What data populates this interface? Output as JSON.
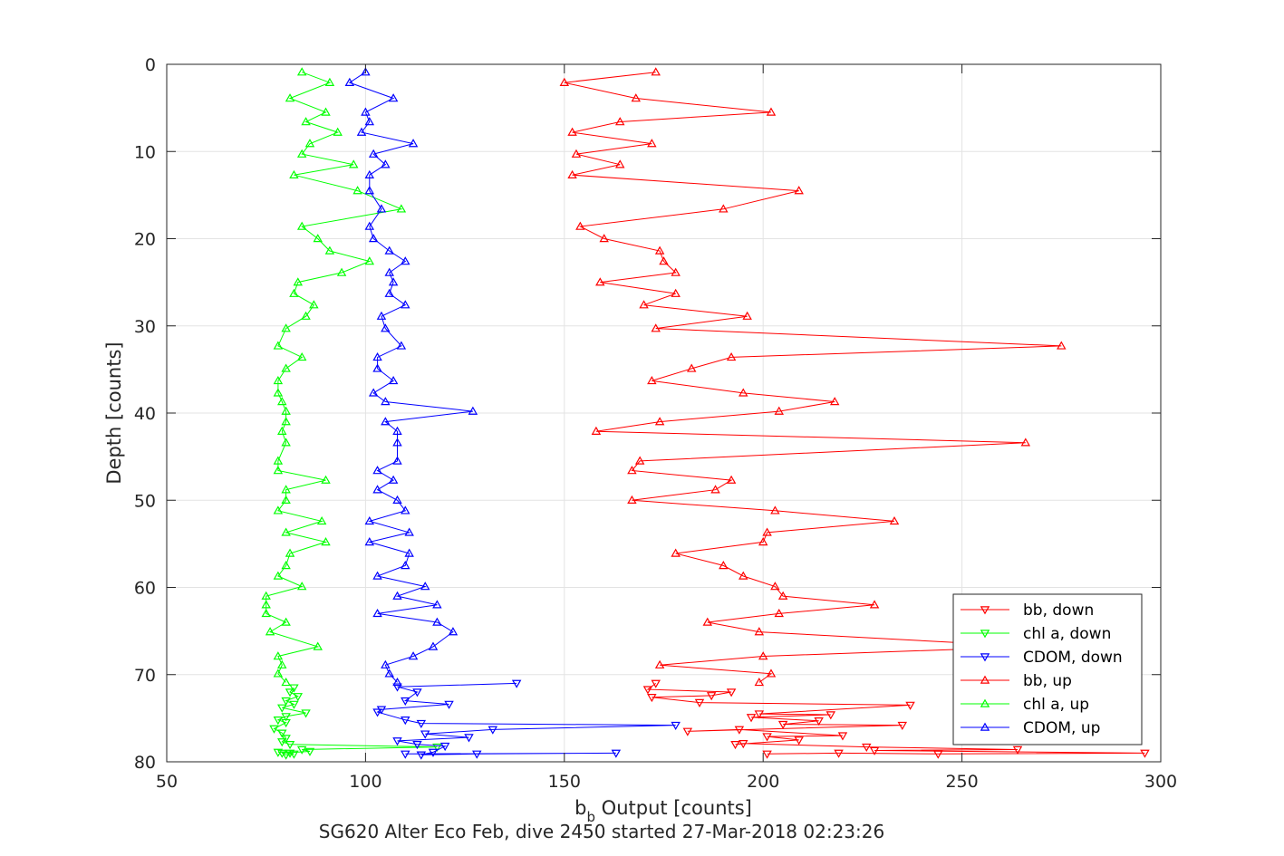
{
  "chart_data": {
    "type": "line",
    "title": "",
    "xlabel": "Output [counts]",
    "xlabel_symbol": "b",
    "xlabel_symbol_sub": "b",
    "ylabel": "Depth [counts]",
    "caption": "SG620 Alter Eco Feb, dive 2450 started 27-Mar-2018 02:23:26",
    "xlim": [
      50,
      300
    ],
    "ylim": [
      0,
      80
    ],
    "y_reversed": true,
    "xticks": [
      "50",
      "100",
      "150",
      "200",
      "250",
      "300"
    ],
    "yticks": [
      "0",
      "10",
      "20",
      "30",
      "40",
      "50",
      "60",
      "70",
      "80"
    ],
    "grid": true,
    "legend_position": "bottom-right",
    "series": [
      {
        "name": "bb, down",
        "color": "#ff0000",
        "marker": "triangle-down",
        "points": [
          [
            173,
            71.0
          ],
          [
            171,
            71.7
          ],
          [
            192,
            72.0
          ],
          [
            187,
            72.4
          ],
          [
            172,
            72.6
          ],
          [
            184,
            73.2
          ],
          [
            237,
            73.5
          ],
          [
            199,
            74.5
          ],
          [
            217,
            74.6
          ],
          [
            197,
            74.9
          ],
          [
            214,
            75.3
          ],
          [
            205,
            75.7
          ],
          [
            235,
            75.8
          ],
          [
            181,
            76.5
          ],
          [
            194,
            76.3
          ],
          [
            220,
            77.0
          ],
          [
            201,
            77.1
          ],
          [
            209,
            77.5
          ],
          [
            193,
            78.0
          ],
          [
            195,
            77.9
          ],
          [
            226,
            78.3
          ],
          [
            264,
            78.6
          ],
          [
            228,
            78.7
          ],
          [
            296,
            79.0
          ],
          [
            244,
            79.1
          ],
          [
            219,
            79.0
          ],
          [
            201,
            79.1
          ]
        ]
      },
      {
        "name": "chl a, down",
        "color": "#00ff00",
        "marker": "triangle-down",
        "points": [
          [
            82,
            71.5
          ],
          [
            81,
            72.0
          ],
          [
            83,
            72.5
          ],
          [
            80,
            73.0
          ],
          [
            82,
            73.4
          ],
          [
            79,
            73.8
          ],
          [
            85,
            74.4
          ],
          [
            80,
            74.8
          ],
          [
            78,
            75.2
          ],
          [
            80,
            75.5
          ],
          [
            77,
            76.2
          ],
          [
            79,
            76.7
          ],
          [
            80,
            77.3
          ],
          [
            79,
            77.7
          ],
          [
            81,
            78.0
          ],
          [
            118,
            78.3
          ],
          [
            84,
            78.6
          ],
          [
            86,
            78.8
          ],
          [
            79,
            79.0
          ],
          [
            80,
            79.2
          ],
          [
            82,
            79.1
          ],
          [
            81,
            79.0
          ],
          [
            78,
            78.9
          ]
        ]
      },
      {
        "name": "CDOM, down",
        "color": "#0000ff",
        "marker": "triangle-down",
        "points": [
          [
            138,
            71.0
          ],
          [
            108,
            71.4
          ],
          [
            113,
            72.0
          ],
          [
            110,
            73.0
          ],
          [
            121,
            73.4
          ],
          [
            104,
            74.0
          ],
          [
            103,
            74.3
          ],
          [
            110,
            75.2
          ],
          [
            114,
            75.6
          ],
          [
            178,
            75.8
          ],
          [
            132,
            76.3
          ],
          [
            115,
            76.8
          ],
          [
            126,
            77.2
          ],
          [
            108,
            77.6
          ],
          [
            113,
            78.0
          ],
          [
            120,
            78.2
          ],
          [
            117,
            78.9
          ],
          [
            114,
            79.2
          ],
          [
            128,
            79.1
          ],
          [
            163,
            79.0
          ],
          [
            110,
            79.1
          ]
        ]
      },
      {
        "name": "bb, up",
        "color": "#ff0000",
        "marker": "triangle-up",
        "points": [
          [
            173,
            0.9
          ],
          [
            150,
            2.1
          ],
          [
            168,
            3.9
          ],
          [
            202,
            5.5
          ],
          [
            164,
            6.6
          ],
          [
            152,
            7.8
          ],
          [
            172,
            9.1
          ],
          [
            153,
            10.3
          ],
          [
            164,
            11.5
          ],
          [
            152,
            12.7
          ],
          [
            209,
            14.5
          ],
          [
            190,
            16.6
          ],
          [
            154,
            18.6
          ],
          [
            160,
            20.0
          ],
          [
            174,
            21.4
          ],
          [
            175,
            22.6
          ],
          [
            178,
            23.9
          ],
          [
            159,
            25.0
          ],
          [
            178,
            26.3
          ],
          [
            170,
            27.6
          ],
          [
            196,
            28.9
          ],
          [
            173,
            30.3
          ],
          [
            275,
            32.3
          ],
          [
            192,
            33.6
          ],
          [
            182,
            34.9
          ],
          [
            172,
            36.3
          ],
          [
            195,
            37.7
          ],
          [
            218,
            38.7
          ],
          [
            204,
            39.8
          ],
          [
            174,
            41.0
          ],
          [
            158,
            42.1
          ],
          [
            266,
            43.4
          ],
          [
            169,
            45.5
          ],
          [
            167,
            46.6
          ],
          [
            192,
            47.7
          ],
          [
            188,
            48.8
          ],
          [
            167,
            50.0
          ],
          [
            203,
            51.2
          ],
          [
            233,
            52.4
          ],
          [
            201,
            53.7
          ],
          [
            200,
            54.8
          ],
          [
            178,
            56.1
          ],
          [
            190,
            57.5
          ],
          [
            195,
            58.7
          ],
          [
            203,
            59.9
          ],
          [
            205,
            61.0
          ],
          [
            228,
            62.0
          ],
          [
            204,
            63.0
          ],
          [
            186,
            64.0
          ],
          [
            199,
            65.1
          ],
          [
            268,
            66.8
          ],
          [
            200,
            67.9
          ],
          [
            174,
            68.9
          ],
          [
            202,
            69.9
          ],
          [
            199,
            70.9
          ]
        ]
      },
      {
        "name": "chl a, up",
        "color": "#00ff00",
        "marker": "triangle-up",
        "points": [
          [
            84,
            0.9
          ],
          [
            91,
            2.1
          ],
          [
            81,
            3.9
          ],
          [
            90,
            5.5
          ],
          [
            85,
            6.6
          ],
          [
            93,
            7.8
          ],
          [
            86,
            9.1
          ],
          [
            84,
            10.3
          ],
          [
            97,
            11.5
          ],
          [
            82,
            12.7
          ],
          [
            98,
            14.5
          ],
          [
            109,
            16.6
          ],
          [
            84,
            18.6
          ],
          [
            88,
            20.0
          ],
          [
            91,
            21.4
          ],
          [
            101,
            22.6
          ],
          [
            94,
            23.9
          ],
          [
            83,
            25.0
          ],
          [
            82,
            26.3
          ],
          [
            87,
            27.6
          ],
          [
            85,
            28.9
          ],
          [
            80,
            30.3
          ],
          [
            78,
            32.3
          ],
          [
            84,
            33.6
          ],
          [
            80,
            34.9
          ],
          [
            78,
            36.3
          ],
          [
            78,
            37.7
          ],
          [
            79,
            38.7
          ],
          [
            80,
            39.8
          ],
          [
            80,
            41.0
          ],
          [
            79,
            42.1
          ],
          [
            80,
            43.4
          ],
          [
            78,
            45.5
          ],
          [
            78,
            46.6
          ],
          [
            90,
            47.7
          ],
          [
            80,
            48.8
          ],
          [
            80,
            50.0
          ],
          [
            78,
            51.2
          ],
          [
            89,
            52.4
          ],
          [
            80,
            53.7
          ],
          [
            90,
            54.8
          ],
          [
            81,
            56.1
          ],
          [
            80,
            57.5
          ],
          [
            78,
            58.7
          ],
          [
            84,
            59.9
          ],
          [
            75,
            61.0
          ],
          [
            75,
            62.0
          ],
          [
            75,
            63.0
          ],
          [
            80,
            64.0
          ],
          [
            76,
            65.1
          ],
          [
            88,
            66.8
          ],
          [
            78,
            67.9
          ],
          [
            79,
            68.9
          ],
          [
            78,
            69.9
          ],
          [
            80,
            70.9
          ]
        ]
      },
      {
        "name": "CDOM, up",
        "color": "#0000ff",
        "marker": "triangle-up",
        "points": [
          [
            100,
            0.9
          ],
          [
            96,
            2.1
          ],
          [
            107,
            3.9
          ],
          [
            100,
            5.5
          ],
          [
            101,
            6.6
          ],
          [
            99,
            7.8
          ],
          [
            112,
            9.1
          ],
          [
            102,
            10.3
          ],
          [
            105,
            11.5
          ],
          [
            101,
            12.7
          ],
          [
            101,
            14.5
          ],
          [
            104,
            16.6
          ],
          [
            101,
            18.6
          ],
          [
            102,
            20.0
          ],
          [
            106,
            21.4
          ],
          [
            110,
            22.6
          ],
          [
            106,
            23.9
          ],
          [
            107,
            25.0
          ],
          [
            106,
            26.3
          ],
          [
            110,
            27.6
          ],
          [
            104,
            28.9
          ],
          [
            105,
            30.3
          ],
          [
            109,
            32.3
          ],
          [
            103,
            33.6
          ],
          [
            103,
            34.9
          ],
          [
            107,
            36.3
          ],
          [
            102,
            37.7
          ],
          [
            105,
            38.7
          ],
          [
            127,
            39.8
          ],
          [
            105,
            41.0
          ],
          [
            108,
            42.1
          ],
          [
            108,
            43.4
          ],
          [
            108,
            45.5
          ],
          [
            103,
            46.6
          ],
          [
            107,
            47.7
          ],
          [
            103,
            48.8
          ],
          [
            108,
            50.0
          ],
          [
            110,
            51.2
          ],
          [
            101,
            52.4
          ],
          [
            111,
            53.7
          ],
          [
            101,
            54.8
          ],
          [
            111,
            56.1
          ],
          [
            110,
            57.5
          ],
          [
            103,
            58.7
          ],
          [
            115,
            59.9
          ],
          [
            108,
            61.0
          ],
          [
            118,
            62.0
          ],
          [
            103,
            63.0
          ],
          [
            118,
            64.0
          ],
          [
            122,
            65.1
          ],
          [
            117,
            66.8
          ],
          [
            112,
            67.9
          ],
          [
            105,
            68.9
          ],
          [
            106,
            69.9
          ],
          [
            108,
            70.9
          ]
        ]
      }
    ]
  }
}
